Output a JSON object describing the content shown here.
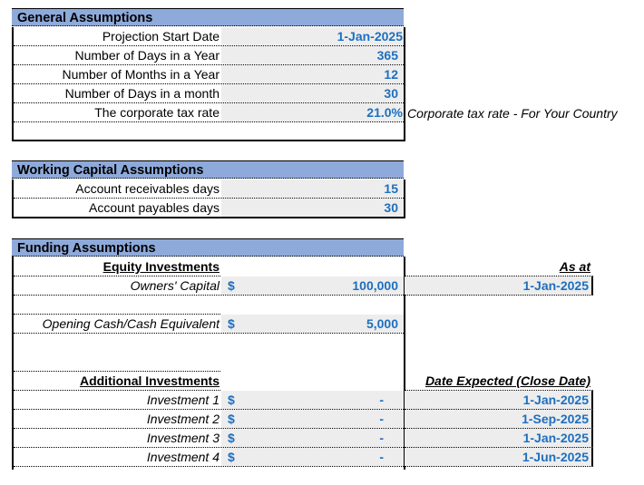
{
  "general": {
    "title": "General Assumptions",
    "rows": [
      {
        "label": "Projection Start Date",
        "value": "1-Jan-2025"
      },
      {
        "label": "Number of Days in a Year",
        "value": "365"
      },
      {
        "label": "Number of Months in a Year",
        "value": "12"
      },
      {
        "label": "Number of Days in a month",
        "value": "30"
      },
      {
        "label": "The corporate tax rate",
        "value": "21.0%",
        "note": "Corporate tax rate - For Your Country"
      }
    ]
  },
  "working_capital": {
    "title": "Working Capital Assumptions",
    "rows": [
      {
        "label": "Account receivables days",
        "value": "15"
      },
      {
        "label": "Account payables days",
        "value": "30"
      }
    ]
  },
  "funding": {
    "title": "Funding Assumptions",
    "equity_header": "Equity Investments",
    "as_at_header": "As at",
    "owners_capital": {
      "label": "Owners' Capital",
      "currency": "$",
      "value": "100,000",
      "date": "1-Jan-2025"
    },
    "opening_cash": {
      "label": "Opening Cash/Cash Equivalent",
      "currency": "$",
      "value": "5,000"
    },
    "additional_header": "Additional Investments",
    "date_expected_header": "Date Expected (Close Date)",
    "investments": [
      {
        "label": "Investment 1",
        "currency": "$",
        "value": "-",
        "date": "1-Jan-2025"
      },
      {
        "label": "Investment 2",
        "currency": "$",
        "value": "-",
        "date": "1-Sep-2025"
      },
      {
        "label": "Investment 3",
        "currency": "$",
        "value": "-",
        "date": "1-Jan-2025"
      },
      {
        "label": "Investment 4",
        "currency": "$",
        "value": "-",
        "date": "1-Jun-2025"
      }
    ]
  }
}
